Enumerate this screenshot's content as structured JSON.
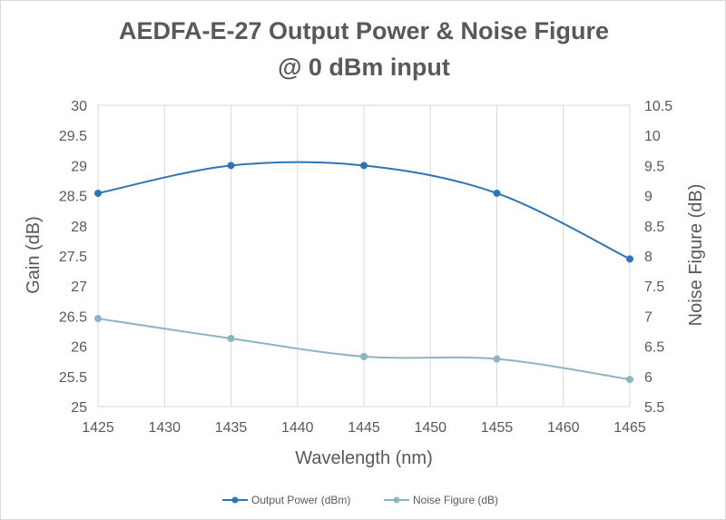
{
  "chart_data": {
    "type": "line",
    "title_lines": [
      "AEDFA-E-27 Output Power & Noise Figure",
      "@ 0 dBm input"
    ],
    "xlabel": "Wavelength (nm)",
    "ylabel": "Gain (dB)",
    "y2label": "Noise Figure (dB)",
    "x_ticks": [
      "1425",
      "1430",
      "1435",
      "1440",
      "1445",
      "1450",
      "1455",
      "1460",
      "1465"
    ],
    "y_ticks": [
      "25",
      "25.5",
      "26",
      "26.5",
      "27",
      "27.5",
      "28",
      "28.5",
      "29",
      "29.5",
      "30"
    ],
    "y2_ticks": [
      "5.5",
      "6",
      "6.5",
      "7",
      "7.5",
      "8",
      "8.5",
      "9",
      "9.5",
      "10",
      "10.5"
    ],
    "xlim": [
      1425,
      1465
    ],
    "ylim": [
      25,
      30
    ],
    "y2lim": [
      5.5,
      10.5
    ],
    "grid": "vertical",
    "legend_position": "bottom",
    "series": [
      {
        "name": "Output Power (dBm)",
        "axis": "left",
        "color": "#2e75b6",
        "x": [
          1425,
          1435,
          1445,
          1455,
          1465
        ],
        "y": [
          28.54,
          29.0,
          29.0,
          28.54,
          27.45
        ]
      },
      {
        "name": "Noise Figure (dB)",
        "axis": "right",
        "color": "#8eb4c2",
        "x": [
          1425,
          1435,
          1445,
          1455,
          1465
        ],
        "y": [
          6.96,
          6.63,
          6.33,
          6.29,
          5.95
        ]
      }
    ]
  }
}
